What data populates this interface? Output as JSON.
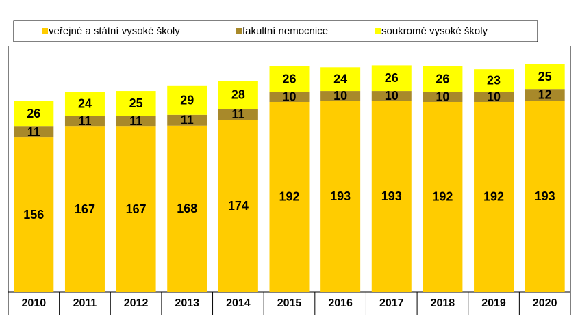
{
  "chart_data": {
    "type": "stacked_bar",
    "categories": [
      "2010",
      "2011",
      "2012",
      "2013",
      "2014",
      "2015",
      "2016",
      "2017",
      "2018",
      "2019",
      "2020"
    ],
    "series": [
      {
        "name": "veřejné a státní vysoké školy",
        "color": "#ffcc00",
        "values": [
          156,
          167,
          167,
          168,
          174,
          192,
          193,
          193,
          192,
          192,
          193
        ]
      },
      {
        "name": "fakultní nemocnice",
        "color": "#a8892a",
        "values": [
          11,
          11,
          11,
          11,
          11,
          10,
          10,
          10,
          10,
          10,
          12
        ]
      },
      {
        "name": "soukromé vysoké školy",
        "color": "#ffff00",
        "values": [
          26,
          24,
          25,
          29,
          28,
          26,
          24,
          26,
          26,
          23,
          25
        ]
      }
    ],
    "ylim": [
      0,
      250
    ]
  }
}
